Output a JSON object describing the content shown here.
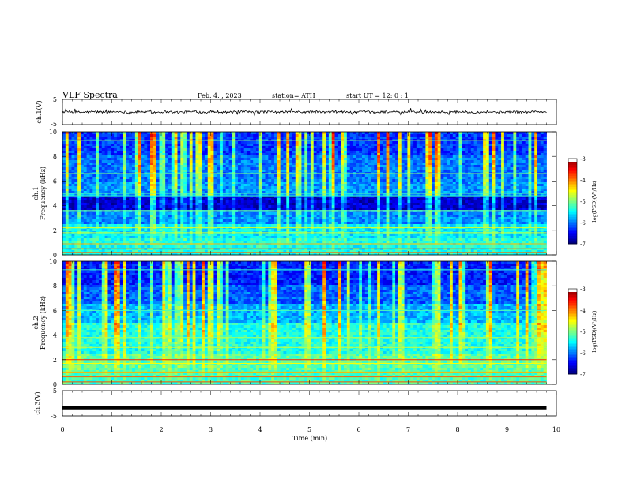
{
  "header": {
    "title": "VLF  Spectra",
    "date": "Feb. 4.  , 2023",
    "station": "station= ATH",
    "start_ut": "start  UT  =    12: 0   : 1"
  },
  "chart_data": [
    {
      "type": "line",
      "panel": "ch1-waveform",
      "ylabel": "ch.1(V)",
      "yticks": [
        "5",
        "-5"
      ],
      "ylim": [
        -5,
        5
      ],
      "x": [
        0,
        1,
        2,
        3,
        4,
        5,
        6,
        7,
        8,
        9,
        9.8
      ],
      "values": [
        0.1,
        0.0,
        0.2,
        -0.1,
        0.1,
        0.0,
        0.1,
        0.0,
        -0.1,
        0.1,
        0.0
      ],
      "line_color": "#000000"
    },
    {
      "type": "heatmap",
      "panel": "ch1-spectrogram",
      "ylabel": "ch.1\nFrequency  (kHz)",
      "yticks": [
        "10",
        "8",
        "6",
        "4",
        "2",
        "0"
      ],
      "ylim": [
        0,
        10
      ],
      "xlim": [
        0,
        10
      ],
      "data_extent_min": 9.8,
      "colorbar": {
        "label": "log(PSD)(V²/Hz)",
        "ticks": [
          "-3",
          "-4",
          "-5",
          "-6",
          "-7"
        ],
        "range": [
          -7,
          -3
        ]
      }
    },
    {
      "type": "heatmap",
      "panel": "ch2-spectrogram",
      "ylabel": "ch.2\nFrequency  (kHz)",
      "yticks": [
        "10",
        "8",
        "6",
        "4",
        "2",
        "0"
      ],
      "ylim": [
        0,
        10
      ],
      "xlim": [
        0,
        10
      ],
      "data_extent_min": 9.8,
      "colorbar": {
        "label": "log(PSD)(V²/Hz)",
        "ticks": [
          "-3",
          "-4",
          "-5",
          "-6",
          "-7"
        ],
        "range": [
          -7,
          -3
        ]
      }
    },
    {
      "type": "line",
      "panel": "ch3-waveform",
      "ylabel": "ch.3(V)",
      "yticks": [
        "5",
        "-5"
      ],
      "ylim": [
        -5,
        5
      ],
      "x": [
        0,
        9.8
      ],
      "values": [
        -1.8,
        -1.8
      ],
      "line_color": "#000000",
      "xlabel": "Time  (min)",
      "xticks": [
        "0",
        "1",
        "2",
        "3",
        "4",
        "5",
        "6",
        "7",
        "8",
        "9",
        "10"
      ]
    }
  ]
}
